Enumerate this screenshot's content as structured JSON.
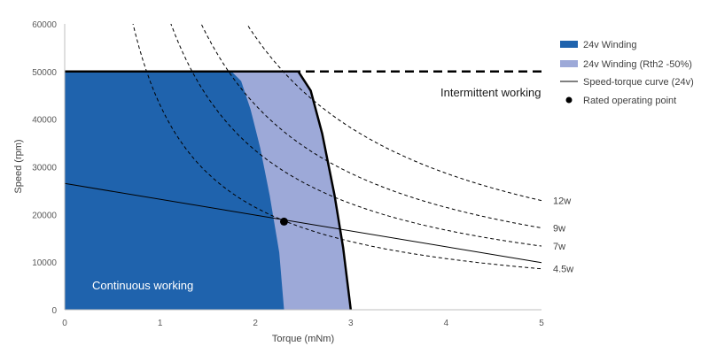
{
  "chart_data": {
    "type": "area",
    "title": "",
    "xlabel": "Torque (mNm)",
    "ylabel": "Speed  (rpm)",
    "xlim": [
      0,
      5
    ],
    "ylim": [
      0,
      60000
    ],
    "x_ticks": [
      "0",
      "1",
      "2",
      "3",
      "4",
      "5"
    ],
    "y_ticks": [
      "0",
      "10000",
      "20000",
      "30000",
      "40000",
      "50000",
      "60000"
    ],
    "grid": false,
    "legend_position": "right",
    "series": [
      {
        "name": "24v Winding (Rth2 -50%)",
        "kind": "area",
        "color": "#9DA9D8",
        "points": [
          [
            0,
            50000
          ],
          [
            2.45,
            50000
          ],
          [
            2.58,
            46000
          ],
          [
            2.7,
            37000
          ],
          [
            2.83,
            24000
          ],
          [
            2.92,
            13000
          ],
          [
            3.0,
            0
          ],
          [
            0,
            0
          ]
        ]
      },
      {
        "name": "24v Winding",
        "kind": "area",
        "color": "#1F63AD",
        "points": [
          [
            0,
            50000
          ],
          [
            1.75,
            50000
          ],
          [
            1.85,
            48000
          ],
          [
            1.95,
            42000
          ],
          [
            2.05,
            34000
          ],
          [
            2.15,
            24000
          ],
          [
            2.25,
            12000
          ],
          [
            2.3,
            0
          ],
          [
            0,
            0
          ]
        ]
      },
      {
        "name": "Speed-torque curve (24v)",
        "kind": "line",
        "color": "#000000",
        "points": [
          [
            0,
            26500
          ],
          [
            5,
            9900
          ]
        ]
      }
    ],
    "boundary": {
      "continuous_limit": [
        [
          0,
          50000
        ],
        [
          2.45,
          50000
        ],
        [
          2.58,
          46000
        ],
        [
          2.7,
          37000
        ],
        [
          2.83,
          24000
        ],
        [
          2.92,
          13000
        ],
        [
          3.0,
          0
        ]
      ],
      "intermittent_limit": [
        [
          0,
          50000
        ],
        [
          5,
          50000
        ]
      ]
    },
    "power_curves": [
      {
        "label": "12w",
        "watts": 12
      },
      {
        "label": "9w",
        "watts": 9
      },
      {
        "label": "7w",
        "watts": 7
      },
      {
        "label": "4.5w",
        "watts": 4.5
      }
    ],
    "rated_point": {
      "name": "Rated operating point",
      "x": 2.3,
      "y": 18500
    },
    "annotations": {
      "intermittent": "Intermittent working",
      "continuous": "Continuous working"
    },
    "legend": [
      {
        "label": "24v Winding",
        "marker": "box",
        "color": "#1F63AD"
      },
      {
        "label": "24v Winding (Rth2 -50%)",
        "marker": "box",
        "color": "#9DA9D8"
      },
      {
        "label": "Speed-torque curve (24v)",
        "marker": "line",
        "color": "#000000"
      },
      {
        "label": "Rated operating point",
        "marker": "dot",
        "color": "#000000"
      }
    ]
  }
}
